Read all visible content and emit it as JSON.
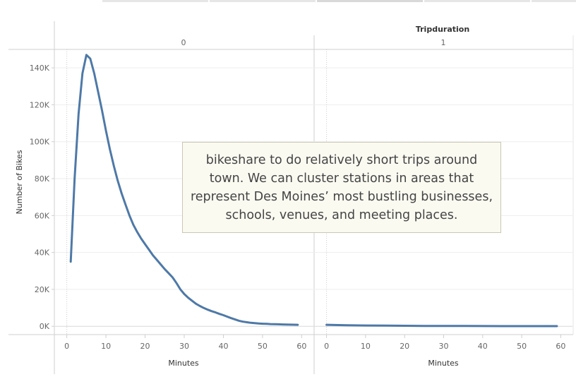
{
  "chart_data": {
    "type": "line",
    "column_header_title": "Tripduration",
    "ylabel": "Number of Bikes",
    "xlabel": "Minutes",
    "ylim": [
      -4500,
      150000
    ],
    "y_ticks": [
      0,
      20000,
      40000,
      60000,
      80000,
      100000,
      120000,
      140000
    ],
    "y_tick_labels": [
      "0K",
      "20K",
      "40K",
      "60K",
      "80K",
      "100K",
      "120K",
      "140K"
    ],
    "panels": [
      {
        "header": "0",
        "xlim": [
          -3,
          63
        ],
        "x_ticks": [
          0,
          10,
          20,
          30,
          40,
          50,
          60
        ],
        "x_ticks_labels": [
          "0",
          "10",
          "20",
          "30",
          "40",
          "50",
          "60"
        ],
        "series": [
          {
            "color": "#4e79a7",
            "x": [
              1,
              2,
              3,
              4,
              5,
              6,
              7,
              8,
              9,
              10,
              11,
              12,
              13,
              14,
              15,
              16,
              17,
              18,
              19,
              20,
              21,
              22,
              23,
              24,
              25,
              26,
              27,
              28,
              29,
              30,
              31,
              32,
              33,
              34,
              35,
              36,
              37,
              38,
              39,
              40,
              41,
              42,
              43,
              44,
              45,
              46,
              47,
              48,
              49,
              50,
              51,
              52,
              53,
              54,
              55,
              56,
              57,
              58,
              59
            ],
            "y": [
              35000,
              80000,
              115000,
              137000,
              147000,
              145000,
              137000,
              127000,
              117000,
              106000,
              96000,
              87000,
              79000,
              72000,
              66000,
              60000,
              55000,
              51000,
              47500,
              44500,
              41500,
              38500,
              36000,
              33500,
              31000,
              28800,
              26500,
              23500,
              20000,
              17500,
              15500,
              13800,
              12200,
              11000,
              9900,
              9000,
              8200,
              7500,
              6700,
              6000,
              5200,
              4400,
              3700,
              3000,
              2500,
              2200,
              1900,
              1700,
              1500,
              1400,
              1300,
              1200,
              1150,
              1100,
              1000,
              950,
              900,
              850,
              800
            ]
          }
        ]
      },
      {
        "header": "1",
        "xlim": [
          -3,
          63
        ],
        "x_ticks": [
          0,
          10,
          20,
          30,
          40,
          50,
          60
        ],
        "x_ticks_labels": [
          "0",
          "10",
          "20",
          "30",
          "40",
          "50",
          "60"
        ],
        "series": [
          {
            "color": "#4e79a7",
            "x": [
              0,
              5,
              10,
              15,
              20,
              25,
              30,
              35,
              40,
              45,
              50,
              55,
              59
            ],
            "y": [
              800,
              600,
              450,
              350,
              280,
              220,
              180,
              150,
              120,
              100,
              90,
              80,
              70
            ]
          }
        ]
      }
    ],
    "grid": true
  },
  "annotation": {
    "text": "bikeshare to do relatively short trips around town. We can cluster stations in areas that represent Des Moines’ most bustling businesses, schools, venues, and meeting places."
  }
}
